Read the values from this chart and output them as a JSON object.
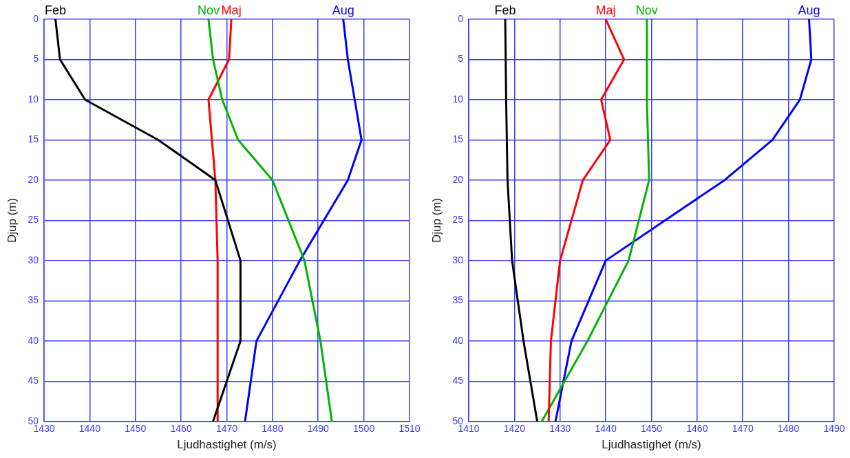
{
  "chart_data": [
    {
      "type": "line",
      "xlabel": "Ljudhastighet (m/s)",
      "ylabel": "Djup (m)",
      "xlim": [
        1430,
        1510
      ],
      "xticks": [
        1430,
        1440,
        1450,
        1460,
        1470,
        1480,
        1490,
        1500,
        1510
      ],
      "ylim": [
        50,
        0
      ],
      "yticks": [
        0,
        5,
        10,
        15,
        20,
        25,
        30,
        35,
        40,
        45,
        50
      ],
      "grid": true,
      "legend": false,
      "marker": "none",
      "line_style": "solid",
      "series": [
        {
          "name": "Feb",
          "color": "#000000",
          "x": [
            1432.5,
            1433.5,
            1439,
            1455,
            1467.5,
            1473,
            1473,
            1467
          ],
          "values": [
            0,
            5,
            10,
            15,
            20,
            30,
            40,
            50
          ]
        },
        {
          "name": "Nov",
          "color": "#00b400",
          "x": [
            1466,
            1467,
            1469,
            1472.5,
            1480,
            1487,
            1490.5,
            1493
          ],
          "values": [
            0,
            5,
            10,
            15,
            20,
            30,
            40,
            50
          ]
        },
        {
          "name": "Maj",
          "color": "#ff0000",
          "x": [
            1471,
            1470.5,
            1466,
            1467.5,
            1468,
            1468
          ],
          "values": [
            0,
            5,
            10,
            20,
            30,
            50
          ]
        },
        {
          "name": "Aug",
          "color": "#0000ff",
          "x": [
            1495.5,
            1496.5,
            1498,
            1499.5,
            1496.5,
            1486,
            1476.5,
            1474
          ],
          "values": [
            0,
            5,
            10,
            15,
            20,
            30,
            40,
            50
          ]
        }
      ]
    },
    {
      "type": "line",
      "xlabel": "Ljudhastighet (m/s)",
      "ylabel": "Djup (m)",
      "xlim": [
        1410,
        1490
      ],
      "xticks": [
        1410,
        1420,
        1430,
        1440,
        1450,
        1460,
        1470,
        1480,
        1490
      ],
      "ylim": [
        50,
        0
      ],
      "yticks": [
        0,
        5,
        10,
        15,
        20,
        25,
        30,
        35,
        40,
        45,
        50
      ],
      "grid": true,
      "legend": false,
      "marker": "none",
      "line_style": "solid",
      "series": [
        {
          "name": "Feb",
          "color": "#000000",
          "x": [
            1418,
            1418.2,
            1418.5,
            1419.5,
            1422,
            1425
          ],
          "values": [
            0,
            10,
            20,
            30,
            40,
            50
          ]
        },
        {
          "name": "Maj",
          "color": "#ff0000",
          "x": [
            1440,
            1444,
            1439,
            1441,
            1435,
            1430,
            1428,
            1427.5
          ],
          "values": [
            0,
            5,
            10,
            15,
            20,
            30,
            40,
            50
          ]
        },
        {
          "name": "Nov",
          "color": "#00b400",
          "x": [
            1449,
            1449,
            1449.5,
            1445,
            1436,
            1426
          ],
          "values": [
            0,
            10,
            20,
            30,
            40,
            50
          ]
        },
        {
          "name": "Aug",
          "color": "#0000ff",
          "x": [
            1484.5,
            1485,
            1482.5,
            1476.5,
            1466,
            1440,
            1432.5,
            1429
          ],
          "values": [
            0,
            5,
            10,
            15,
            20,
            30,
            40,
            50
          ]
        }
      ]
    }
  ]
}
